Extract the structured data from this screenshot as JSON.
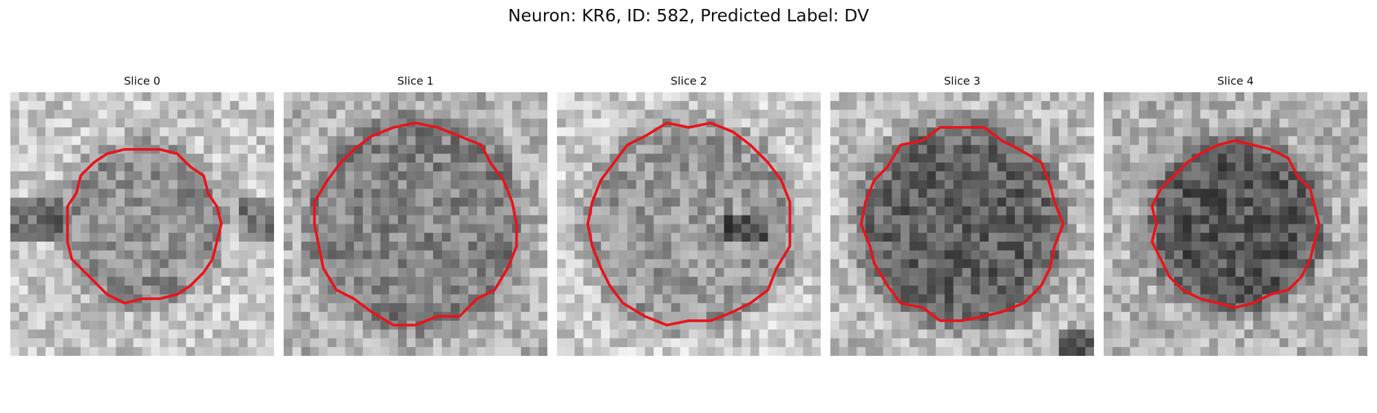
{
  "figure": {
    "title": "Neuron: KR6, ID: 582, Predicted Label: DV"
  },
  "colors": {
    "contour": "#e8141c"
  },
  "slices": [
    {
      "title": "Slice 0",
      "contour_radius": 0.29,
      "interior_darkness": 0.42,
      "background_lightness": 0.78,
      "extra": "horizontal-band"
    },
    {
      "title": "Slice 1",
      "contour_radius": 0.38,
      "interior_darkness": 0.48,
      "background_lightness": 0.7,
      "extra": "none"
    },
    {
      "title": "Slice 2",
      "contour_radius": 0.38,
      "interior_darkness": 0.4,
      "background_lightness": 0.8,
      "extra": "right-dark-spot"
    },
    {
      "title": "Slice 3",
      "contour_radius": 0.37,
      "interior_darkness": 0.62,
      "background_lightness": 0.74,
      "extra": "bottom-right-dark"
    },
    {
      "title": "Slice 4",
      "contour_radius": 0.31,
      "interior_darkness": 0.66,
      "background_lightness": 0.7,
      "extra": "none"
    }
  ]
}
